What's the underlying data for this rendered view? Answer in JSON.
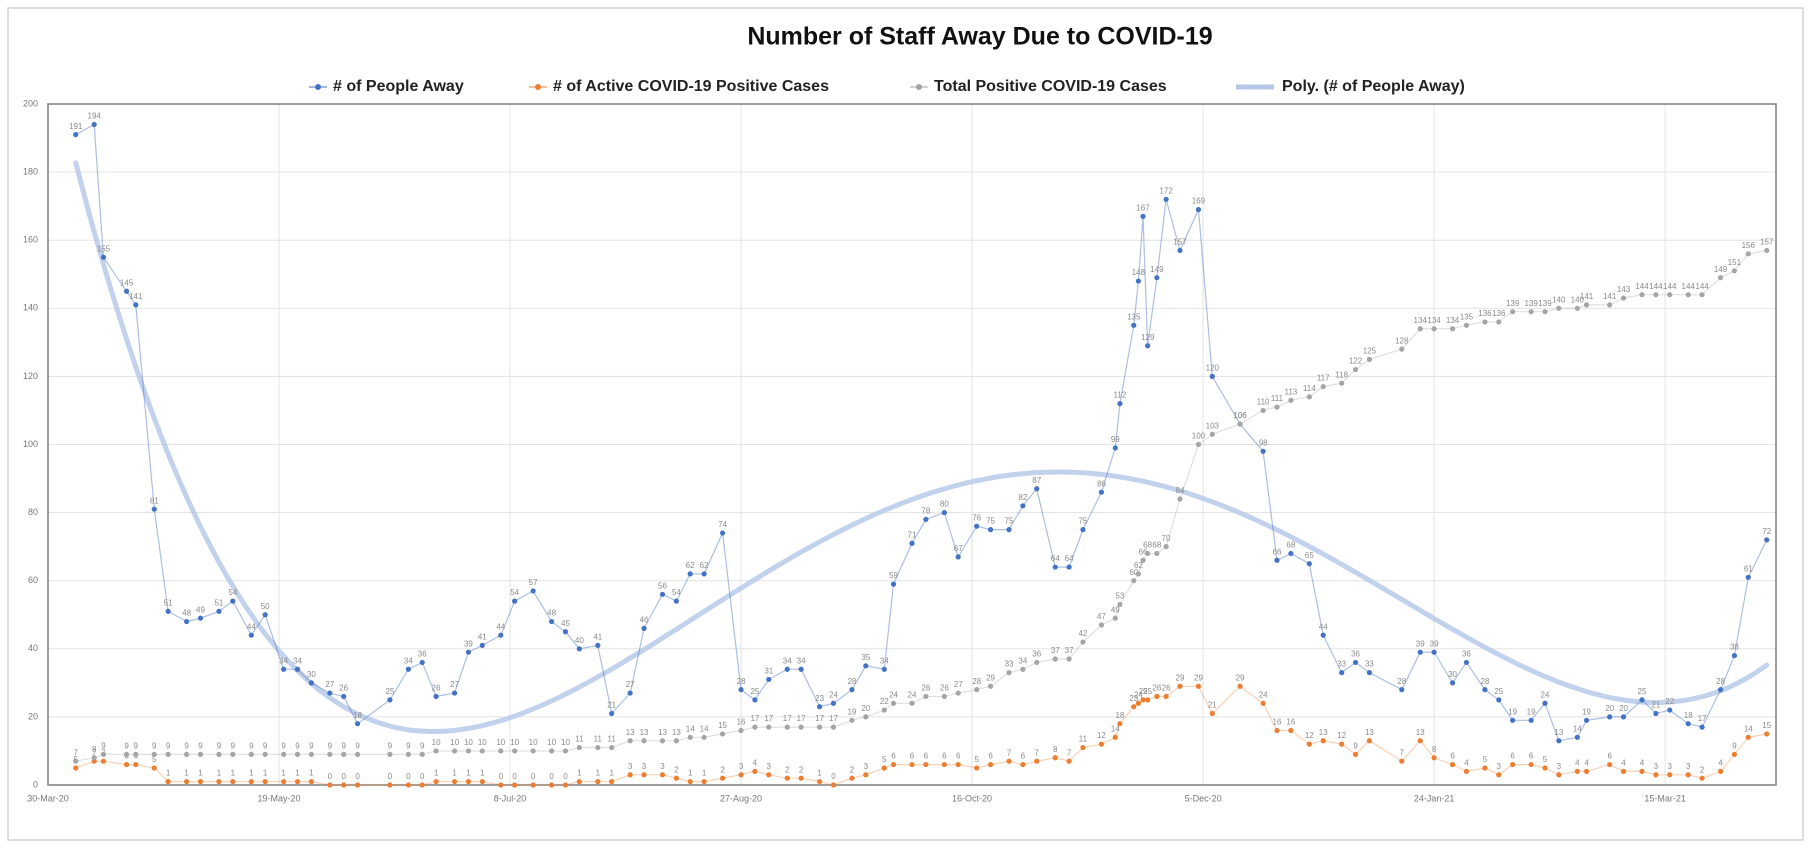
{
  "chart_data": {
    "type": "line",
    "title": "Number of Staff Away Due to COVID-19",
    "x": [
      "2020-04-05",
      "2020-04-09",
      "2020-04-11",
      "2020-04-16",
      "2020-04-18",
      "2020-04-22",
      "2020-04-25",
      "2020-04-29",
      "2020-05-02",
      "2020-05-06",
      "2020-05-09",
      "2020-05-13",
      "2020-05-16",
      "2020-05-20",
      "2020-05-23",
      "2020-05-26",
      "2020-05-30",
      "2020-06-02",
      "2020-06-05",
      "2020-06-12",
      "2020-06-16",
      "2020-06-19",
      "2020-06-22",
      "2020-06-26",
      "2020-06-29",
      "2020-07-02",
      "2020-07-06",
      "2020-07-09",
      "2020-07-13",
      "2020-07-17",
      "2020-07-20",
      "2020-07-23",
      "2020-07-27",
      "2020-07-30",
      "2020-08-03",
      "2020-08-06",
      "2020-08-10",
      "2020-08-13",
      "2020-08-16",
      "2020-08-19",
      "2020-08-23",
      "2020-08-27",
      "2020-08-30",
      "2020-09-02",
      "2020-09-06",
      "2020-09-09",
      "2020-09-13",
      "2020-09-16",
      "2020-09-20",
      "2020-09-23",
      "2020-09-27",
      "2020-09-29",
      "2020-10-03",
      "2020-10-06",
      "2020-10-10",
      "2020-10-13",
      "2020-10-17",
      "2020-10-20",
      "2020-10-24",
      "2020-10-27",
      "2020-10-30",
      "2020-11-03",
      "2020-11-06",
      "2020-11-09",
      "2020-11-13",
      "2020-11-16",
      "2020-11-17",
      "2020-11-20",
      "2020-11-21",
      "2020-11-22",
      "2020-11-23",
      "2020-11-25",
      "2020-11-27",
      "2020-11-30",
      "2020-12-04",
      "2020-12-07",
      "2020-12-13",
      "2020-12-18",
      "2020-12-21",
      "2020-12-24",
      "2020-12-28",
      "2020-12-31",
      "2021-01-04",
      "2021-01-07",
      "2021-01-10",
      "2021-01-17",
      "2021-01-21",
      "2021-01-24",
      "2021-01-28",
      "2021-01-31",
      "2021-02-04",
      "2021-02-07",
      "2021-02-10",
      "2021-02-14",
      "2021-02-17",
      "2021-02-20",
      "2021-02-24",
      "2021-02-26",
      "2021-03-03",
      "2021-03-06",
      "2021-03-10",
      "2021-03-13",
      "2021-03-16",
      "2021-03-20",
      "2021-03-23",
      "2021-03-27",
      "2021-03-30",
      "2021-04-02",
      "2021-04-06"
    ],
    "series": [
      {
        "name": "# of People  Away",
        "color": "#4472c4",
        "values": [
          191,
          194,
          155,
          145,
          141,
          81,
          51,
          48,
          49,
          51,
          54,
          44,
          50,
          34,
          34,
          30,
          27,
          26,
          18,
          25,
          34,
          36,
          26,
          27,
          39,
          41,
          44,
          54,
          57,
          48,
          45,
          40,
          41,
          21,
          27,
          46,
          56,
          54,
          62,
          62,
          74,
          28,
          25,
          31,
          34,
          34,
          23,
          24,
          28,
          35,
          34,
          59,
          71,
          78,
          80,
          67,
          76,
          75,
          75,
          82,
          87,
          64,
          64,
          75,
          86,
          99,
          112,
          135,
          148,
          167,
          129,
          149,
          172,
          157,
          169,
          120,
          106,
          98,
          66,
          68,
          65,
          44,
          33,
          36,
          33,
          28,
          39,
          39,
          30,
          36,
          28,
          25,
          19,
          19,
          24,
          13,
          14,
          19,
          20,
          20,
          25,
          21,
          22,
          18,
          17,
          28,
          38,
          61,
          72
        ]
      },
      {
        "name": "# of Active COVID-19 Positive Cases",
        "color": "#ed7d31",
        "values": [
          5,
          7,
          7,
          6,
          6,
          5,
          1,
          1,
          1,
          1,
          1,
          1,
          1,
          1,
          1,
          1,
          0,
          0,
          0,
          0,
          0,
          0,
          1,
          1,
          1,
          1,
          0,
          0,
          0,
          0,
          0,
          1,
          1,
          1,
          3,
          3,
          3,
          2,
          1,
          1,
          2,
          3,
          4,
          3,
          2,
          2,
          1,
          0,
          2,
          3,
          5,
          6,
          6,
          6,
          6,
          6,
          5,
          6,
          7,
          6,
          7,
          8,
          7,
          11,
          12,
          14,
          18,
          23,
          24,
          25,
          25,
          26,
          26,
          29,
          29,
          21,
          29,
          24,
          16,
          16,
          12,
          13,
          12,
          9,
          13,
          7,
          13,
          8,
          6,
          4,
          5,
          3,
          6,
          6,
          5,
          3,
          4,
          4,
          6,
          4,
          4,
          3,
          3,
          3,
          2,
          4,
          9,
          14,
          15
        ]
      },
      {
        "name": "Total Positive COVID-19 Cases",
        "color": "#a5a5a5",
        "values": [
          7,
          8,
          9,
          9,
          9,
          9,
          9,
          9,
          9,
          9,
          9,
          9,
          9,
          9,
          9,
          9,
          9,
          9,
          9,
          9,
          9,
          9,
          10,
          10,
          10,
          10,
          10,
          10,
          10,
          10,
          10,
          11,
          11,
          11,
          13,
          13,
          13,
          13,
          14,
          14,
          15,
          16,
          17,
          17,
          17,
          17,
          17,
          17,
          19,
          20,
          22,
          24,
          24,
          26,
          26,
          27,
          28,
          29,
          33,
          34,
          36,
          37,
          37,
          42,
          47,
          49,
          53,
          60,
          62,
          66,
          68,
          68,
          70,
          84,
          100,
          103,
          106,
          110,
          111,
          113,
          114,
          117,
          118,
          122,
          125,
          128,
          134,
          134,
          134,
          135,
          136,
          136,
          139,
          139,
          139,
          140,
          140,
          141,
          141,
          143,
          144,
          144,
          144,
          144,
          144,
          149,
          151,
          156,
          157
        ]
      }
    ],
    "trendline": {
      "name": "Poly. (# of People  Away)",
      "series": 0,
      "order": 4,
      "color": "#b4c7e7"
    },
    "xlim": [
      "2020-03-30",
      "2021-04-08"
    ],
    "xticks": [
      {
        "value": "2020-03-30",
        "label": "30-Mar-20"
      },
      {
        "value": "2020-05-19",
        "label": "19-May-20"
      },
      {
        "value": "2020-07-08",
        "label": "8-Jul-20"
      },
      {
        "value": "2020-08-27",
        "label": "27-Aug-20"
      },
      {
        "value": "2020-10-16",
        "label": "16-Oct-20"
      },
      {
        "value": "2020-12-05",
        "label": "5-Dec-20"
      },
      {
        "value": "2021-01-24",
        "label": "24-Jan-21"
      },
      {
        "value": "2021-03-15",
        "label": "15-Mar-21"
      }
    ],
    "ylim": [
      0,
      200
    ],
    "yticks": [
      0,
      20,
      40,
      60,
      80,
      100,
      120,
      140,
      160,
      180,
      200
    ],
    "grid": true,
    "legend": "top"
  }
}
